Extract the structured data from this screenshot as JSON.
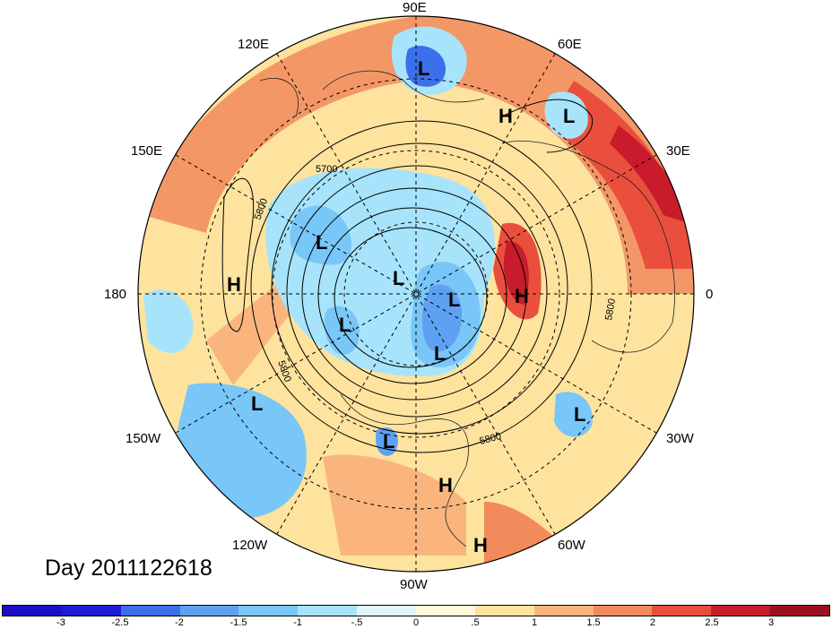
{
  "longitude_labels": {
    "lon_90e": "90E",
    "lon_60e": "60E",
    "lon_120e": "120E",
    "lon_30e": "30E",
    "lon_150e": "150E",
    "lon_0": "0",
    "lon_180": "180",
    "lon_30w": "30W",
    "lon_150w": "150W",
    "lon_60w": "60W",
    "lon_120w": "120W",
    "lon_90w": "90W"
  },
  "date_label": "Day 2011122618",
  "contour_labels": [
    "5700",
    "5800",
    "5800",
    "5800",
    "5800"
  ],
  "pressure_centers": [
    "L",
    "H",
    "L",
    "L",
    "H",
    "L",
    "L",
    "H",
    "L",
    "L",
    "L",
    "L",
    "H",
    "H",
    "L"
  ],
  "colorbar": {
    "colors": [
      "#1f1bd6",
      "#3c6fea",
      "#5ea1f2",
      "#79c6f8",
      "#a7e4fb",
      "#dff6fd",
      "#fff8d6",
      "#fde39e",
      "#f9b57d",
      "#f28a5c",
      "#ea4f3d",
      "#c81b2b",
      "#9c0f20"
    ],
    "ticks": [
      "-3",
      "-2.5",
      "-2",
      "-1.5",
      "-1",
      "-.5",
      "0",
      ".5",
      "1",
      "1.5",
      "2",
      "2.5",
      "3"
    ]
  }
}
